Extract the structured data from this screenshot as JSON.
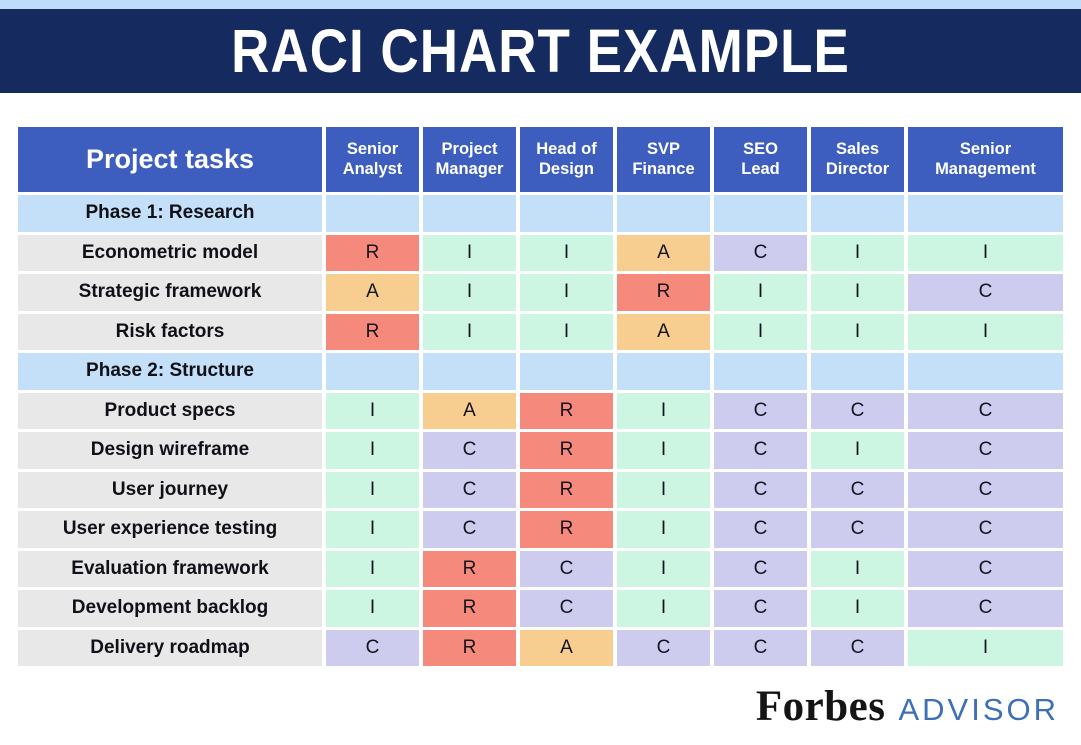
{
  "banner": {
    "title": "RACI CHART EXAMPLE"
  },
  "chart_data": {
    "type": "table",
    "title": "RACI CHART EXAMPLE",
    "corner_header": "Project tasks",
    "columns": [
      "Senior Analyst",
      "Project Manager",
      "Head of Design",
      "SVP Finance",
      "SEO Lead",
      "Sales Director",
      "Senior Management"
    ],
    "rows": [
      {
        "type": "phase",
        "label": "Phase 1: Research",
        "cells": [
          "",
          "",
          "",
          "",
          "",
          "",
          ""
        ]
      },
      {
        "type": "task",
        "label": "Econometric model",
        "cells": [
          "R",
          "I",
          "I",
          "A",
          "C",
          "I",
          "I"
        ]
      },
      {
        "type": "task",
        "label": "Strategic framework",
        "cells": [
          "A",
          "I",
          "I",
          "R",
          "I",
          "I",
          "C"
        ]
      },
      {
        "type": "task",
        "label": "Risk factors",
        "cells": [
          "R",
          "I",
          "I",
          "A",
          "I",
          "I",
          "I"
        ]
      },
      {
        "type": "phase",
        "label": "Phase 2: Structure",
        "cells": [
          "",
          "",
          "",
          "",
          "",
          "",
          ""
        ]
      },
      {
        "type": "task",
        "label": "Product specs",
        "cells": [
          "I",
          "A",
          "R",
          "I",
          "C",
          "C",
          "C"
        ]
      },
      {
        "type": "task",
        "label": "Design wireframe",
        "cells": [
          "I",
          "C",
          "R",
          "I",
          "C",
          "I",
          "C"
        ]
      },
      {
        "type": "task",
        "label": "User journey",
        "cells": [
          "I",
          "C",
          "R",
          "I",
          "C",
          "C",
          "C"
        ]
      },
      {
        "type": "task",
        "label": "User experience testing",
        "cells": [
          "I",
          "C",
          "R",
          "I",
          "C",
          "C",
          "C"
        ]
      },
      {
        "type": "task",
        "label": "Evaluation framework",
        "cells": [
          "I",
          "R",
          "C",
          "I",
          "C",
          "I",
          "C"
        ]
      },
      {
        "type": "task",
        "label": "Development backlog",
        "cells": [
          "I",
          "R",
          "C",
          "I",
          "C",
          "I",
          "C"
        ]
      },
      {
        "type": "task",
        "label": "Delivery roadmap",
        "cells": [
          "C",
          "R",
          "A",
          "C",
          "C",
          "C",
          "I"
        ]
      }
    ],
    "cell_colors": {
      "R": "#F5897B",
      "A": "#F8CE90",
      "C": "#CDCCEF",
      "I": "#CCF5E2"
    },
    "layout_colors": {
      "top_strip": "#BFDDF8",
      "banner_bg": "#152A5E",
      "header_bg": "#3D5EBE",
      "phase_row_bg": "#C3E0F8",
      "task_label_bg": "#E8E8E8",
      "advisor_blue": "#3E70B7"
    }
  },
  "footer": {
    "brand": "Forbes",
    "brand_suffix": "ADVISOR"
  }
}
